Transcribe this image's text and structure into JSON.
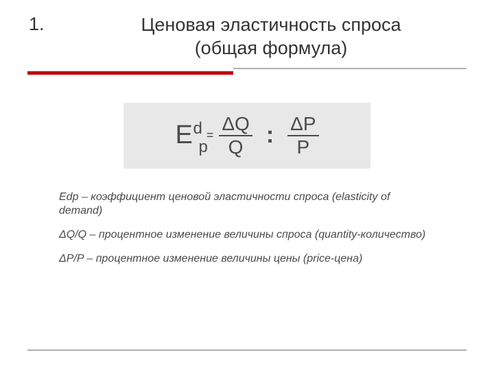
{
  "title": {
    "number": "1.",
    "line1": "Ценовая эластичность спроса",
    "line2": "(общая формула)"
  },
  "formula": {
    "lhs_base": "E",
    "lhs_sup": "d",
    "lhs_sub": "p",
    "equals": "=",
    "frac1_num": "ΔQ",
    "frac1_den": "Q",
    "divide": ":",
    "frac2_num": "ΔP",
    "frac2_den": "P",
    "box_bg": "#e8e8e8",
    "text_color": "#4a4a4a"
  },
  "definitions": [
    "Edp – коэффициент ценовой эластичности спроса (elasticity of demand)",
    "ΔQ/Q – процентное изменение величины спроса (quantity-количество)",
    "ΔP/P – процентное изменение величины цены (price-цена)"
  ],
  "colors": {
    "accent_red": "#c00000",
    "divider_gray": "#b0b0b0",
    "text_dark": "#333333",
    "text_body": "#4a4a4a",
    "background": "#ffffff"
  }
}
